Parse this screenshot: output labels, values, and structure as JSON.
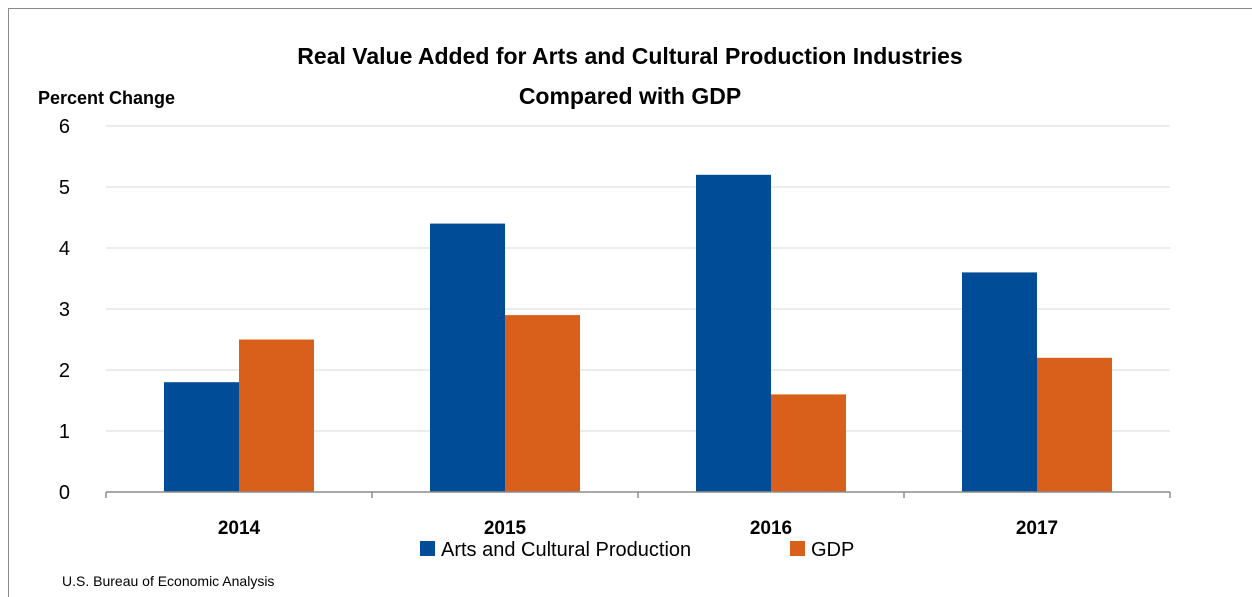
{
  "chart_data": {
    "type": "bar",
    "title_line1": "Real Value Added for Arts and Cultural Production Industries",
    "title_line2": "Compared with GDP",
    "ylabel": "Percent Change",
    "xlabel": "",
    "categories": [
      "2014",
      "2015",
      "2016",
      "2017"
    ],
    "series": [
      {
        "name": "Arts and Cultural Production",
        "values": [
          1.8,
          4.4,
          5.2,
          3.6
        ],
        "color": "#004C97"
      },
      {
        "name": "GDP",
        "values": [
          2.5,
          2.9,
          1.6,
          2.2
        ],
        "color": "#D9601A"
      }
    ],
    "ylim": [
      0,
      6
    ],
    "yticks": [
      0,
      1,
      2,
      3,
      4,
      5,
      6
    ],
    "grid": true,
    "legend_position": "bottom-center"
  },
  "source": "U.S. Bureau of Economic Analysis"
}
